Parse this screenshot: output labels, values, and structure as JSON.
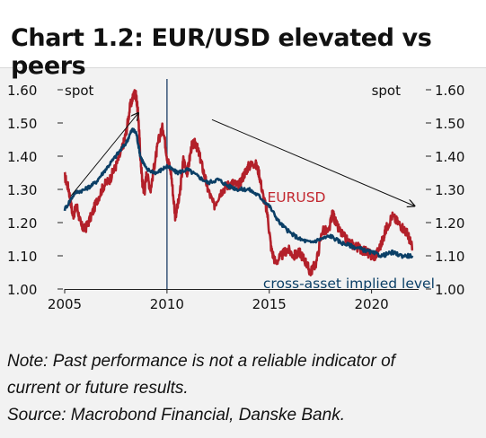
{
  "title": "Chart 1.2: EUR/USD elevated vs peers",
  "notes": {
    "line1": "Note: Past performance is not a reliable indicator of",
    "line2": "current or future results.",
    "line3": "Source: Macrobond Financial, Danske Bank."
  },
  "colors": {
    "eurusd": "#b3202a",
    "implied": "#0b3f66",
    "axis": "#222222",
    "divider": "#2c4a70",
    "label_red": "#c2262e",
    "label_blue": "#0b3f66"
  },
  "chart_data": {
    "type": "line",
    "title": "Chart 1.2: EUR/USD elevated vs peers",
    "xlim": [
      2005,
      2022.3
    ],
    "ylim": [
      1.0,
      1.6
    ],
    "x_ticks": [
      2005,
      2010,
      2015,
      2020
    ],
    "y_ticks": [
      1.0,
      1.1,
      1.2,
      1.3,
      1.4,
      1.5,
      1.6
    ],
    "left_axis_label": "spot",
    "right_axis_label": "spot",
    "grid": false,
    "vertical_marker_x": 2010,
    "series": [
      {
        "name": "EURUSD",
        "color": "#b3202a",
        "x": [
          2005.0,
          2005.2,
          2005.4,
          2005.6,
          2005.8,
          2006.0,
          2006.3,
          2006.6,
          2006.9,
          2007.2,
          2007.5,
          2007.8,
          2008.0,
          2008.2,
          2008.4,
          2008.5,
          2008.6,
          2008.7,
          2008.8,
          2008.9,
          2009.0,
          2009.2,
          2009.4,
          2009.6,
          2009.8,
          2010.0,
          2010.2,
          2010.4,
          2010.6,
          2010.8,
          2011.0,
          2011.2,
          2011.4,
          2011.6,
          2011.8,
          2012.0,
          2012.3,
          2012.6,
          2012.9,
          2013.2,
          2013.5,
          2013.8,
          2014.0,
          2014.3,
          2014.5,
          2014.7,
          2014.9,
          2015.1,
          2015.3,
          2015.6,
          2015.9,
          2016.2,
          2016.5,
          2016.8,
          2017.0,
          2017.3,
          2017.6,
          2017.9,
          2018.1,
          2018.3,
          2018.6,
          2018.9,
          2019.2,
          2019.5,
          2019.8,
          2020.0,
          2020.2,
          2020.5,
          2020.7,
          2021.0,
          2021.3,
          2021.6,
          2021.8,
          2022.0
        ],
        "values": [
          1.34,
          1.3,
          1.22,
          1.25,
          1.19,
          1.18,
          1.22,
          1.27,
          1.31,
          1.33,
          1.37,
          1.42,
          1.47,
          1.55,
          1.59,
          1.58,
          1.52,
          1.4,
          1.32,
          1.29,
          1.35,
          1.3,
          1.38,
          1.45,
          1.49,
          1.4,
          1.35,
          1.22,
          1.27,
          1.39,
          1.35,
          1.43,
          1.44,
          1.4,
          1.35,
          1.3,
          1.25,
          1.29,
          1.31,
          1.32,
          1.31,
          1.35,
          1.37,
          1.38,
          1.35,
          1.28,
          1.23,
          1.12,
          1.08,
          1.1,
          1.12,
          1.1,
          1.11,
          1.08,
          1.05,
          1.08,
          1.18,
          1.17,
          1.23,
          1.19,
          1.16,
          1.14,
          1.13,
          1.12,
          1.11,
          1.1,
          1.1,
          1.14,
          1.18,
          1.22,
          1.2,
          1.18,
          1.16,
          1.12
        ]
      },
      {
        "name": "cross-asset implied level",
        "color": "#0b3f66",
        "x": [
          2005.0,
          2005.5,
          2006.0,
          2006.5,
          2007.0,
          2007.5,
          2008.0,
          2008.3,
          2008.5,
          2008.7,
          2009.0,
          2009.5,
          2010.0,
          2010.5,
          2011.0,
          2011.5,
          2012.0,
          2012.5,
          2013.0,
          2013.5,
          2014.0,
          2014.5,
          2015.0,
          2015.5,
          2016.0,
          2016.5,
          2017.0,
          2017.5,
          2018.0,
          2018.5,
          2019.0,
          2019.5,
          2020.0,
          2020.5,
          2021.0,
          2021.5,
          2022.0
        ],
        "values": [
          1.24,
          1.29,
          1.3,
          1.32,
          1.36,
          1.4,
          1.44,
          1.48,
          1.47,
          1.4,
          1.36,
          1.35,
          1.37,
          1.35,
          1.36,
          1.34,
          1.32,
          1.33,
          1.31,
          1.3,
          1.3,
          1.28,
          1.25,
          1.2,
          1.17,
          1.15,
          1.14,
          1.15,
          1.16,
          1.14,
          1.13,
          1.12,
          1.11,
          1.1,
          1.11,
          1.1,
          1.1
        ]
      }
    ],
    "annotations": [
      {
        "text": "EURUSD",
        "x": 2014.9,
        "y": 1.26,
        "color": "#c2262e"
      },
      {
        "text": "cross-asset implied level",
        "x": 2014.7,
        "y": 1.0,
        "color": "#0b3f66"
      }
    ],
    "arrows": [
      {
        "from": [
          2005.3,
          1.28
        ],
        "to": [
          2008.6,
          1.53
        ]
      },
      {
        "from": [
          2012.2,
          1.51
        ],
        "to": [
          2022.1,
          1.25
        ]
      }
    ]
  }
}
